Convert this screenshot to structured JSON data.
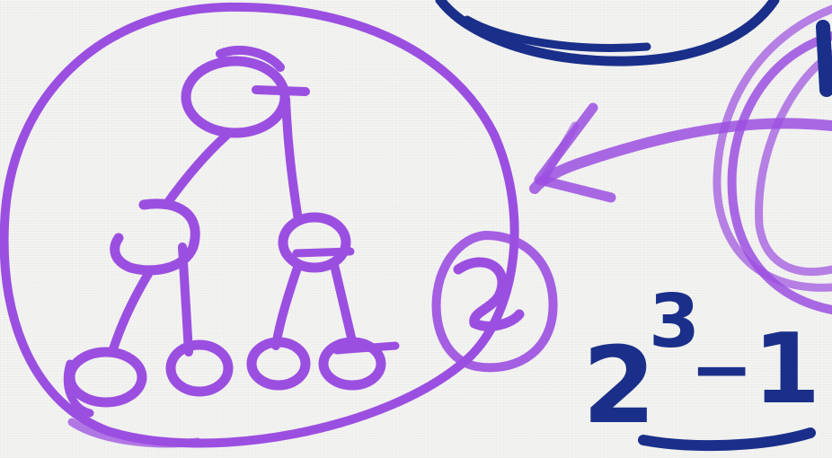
{
  "colors": {
    "purple_ink": "#9b4fe0",
    "navy_ink": "#1a2f8a",
    "paper": "#f3f3f1"
  },
  "formula": {
    "base": "2",
    "exponent": "3",
    "minus": "−",
    "term": "1"
  }
}
